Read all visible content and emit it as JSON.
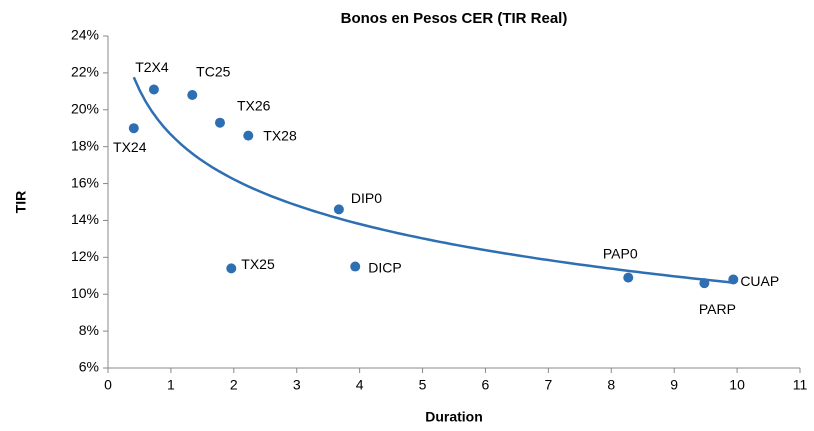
{
  "chart_data": {
    "type": "scatter",
    "title": "Bonos en Pesos CER  (TIR Real)",
    "x_label": "Duration",
    "y_label": "TIR",
    "series": [
      {
        "name": "Bonos",
        "color": "#2e6fb4",
        "labels": [
          "T2X4",
          "TX24",
          "TC25",
          "TX26",
          "TX28",
          "DIP0",
          "TX25",
          "DICP",
          "PAP0",
          "PARP",
          "CUAP"
        ],
        "x": [
          0.73,
          0.41,
          1.34,
          1.78,
          2.23,
          3.67,
          1.96,
          3.93,
          8.27,
          9.48,
          9.94
        ],
        "values": [
          21.1,
          19.0,
          20.8,
          19.3,
          18.6,
          14.6,
          11.4,
          11.5,
          10.9,
          10.6,
          10.8
        ]
      }
    ],
    "trendline": "logarithmic",
    "xlim": [
      0,
      11
    ],
    "xticks": [
      0,
      1,
      2,
      3,
      4,
      5,
      6,
      7,
      8,
      9,
      10,
      11
    ],
    "ylim": [
      6,
      24
    ],
    "yticks": [
      {
        "value": 6,
        "label": "6%"
      },
      {
        "value": 8,
        "label": "8%"
      },
      {
        "value": 10,
        "label": "10%"
      },
      {
        "value": 12,
        "label": "12%"
      },
      {
        "value": 14,
        "label": "14%"
      },
      {
        "value": 16,
        "label": "16%"
      },
      {
        "value": 18,
        "label": "18%"
      },
      {
        "value": 20,
        "label": "20%"
      },
      {
        "value": 22,
        "label": "22%"
      },
      {
        "value": 24,
        "label": "24%"
      }
    ],
    "grid": false
  }
}
